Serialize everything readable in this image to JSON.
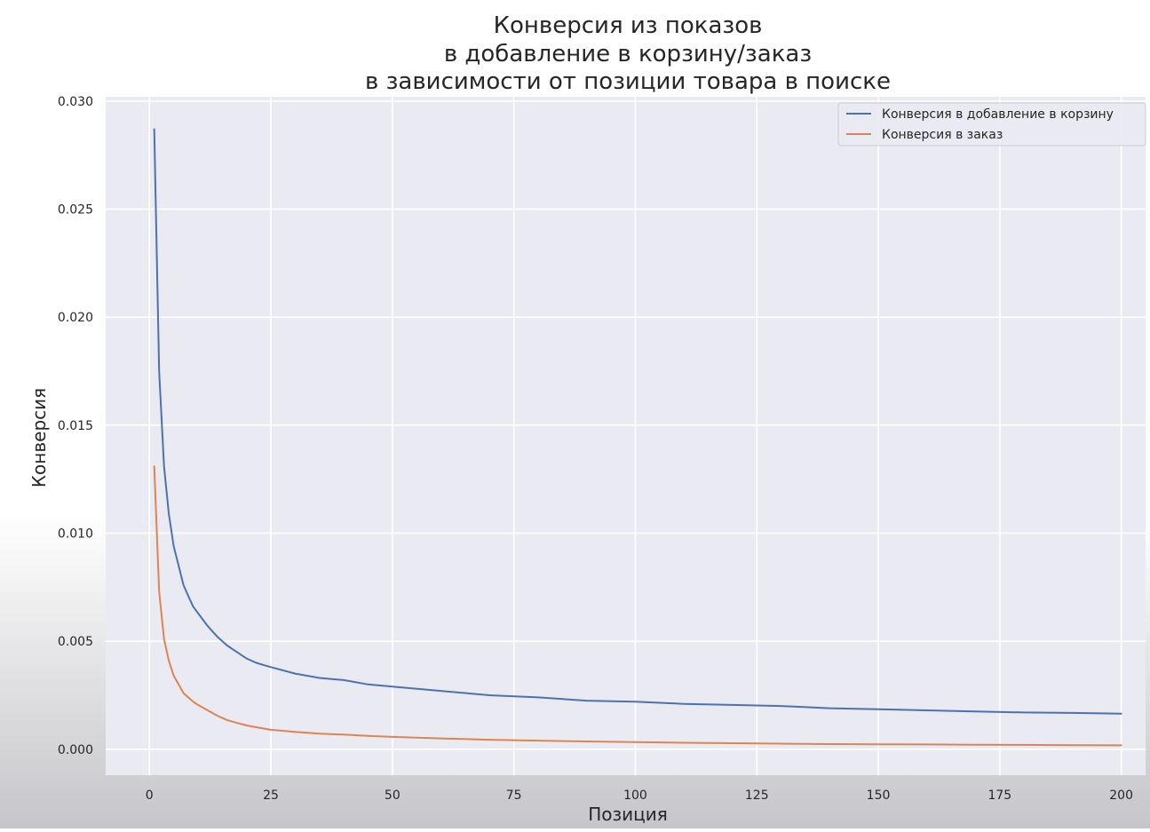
{
  "chart_data": {
    "type": "line",
    "title_lines": [
      "Конверсия из показов",
      "в добавление в корзину/заказ",
      "в зависимости от позиции товара в поиске"
    ],
    "xlabel": "Позиция",
    "ylabel": "Конверсия",
    "xlim": [
      -9,
      205
    ],
    "ylim": [
      -0.0012,
      0.0302
    ],
    "x_ticks": [
      0,
      25,
      50,
      75,
      100,
      125,
      150,
      175,
      200
    ],
    "y_ticks": [
      0.0,
      0.005,
      0.01,
      0.015,
      0.02,
      0.025,
      0.03
    ],
    "y_tick_labels": [
      "0.000",
      "0.005",
      "0.010",
      "0.015",
      "0.020",
      "0.025",
      "0.030"
    ],
    "grid": true,
    "legend_position": "top-right",
    "series": [
      {
        "name": "Конверсия в добавление в корзину",
        "color": "#4c72b0",
        "x": [
          1,
          2,
          3,
          4,
          5,
          6,
          7,
          8,
          9,
          10,
          12,
          14,
          16,
          18,
          20,
          22,
          25,
          30,
          35,
          40,
          45,
          50,
          60,
          70,
          80,
          90,
          100,
          110,
          120,
          130,
          140,
          150,
          160,
          170,
          180,
          190,
          200
        ],
        "y": [
          0.0287,
          0.0175,
          0.0131,
          0.0109,
          0.0094,
          0.0085,
          0.0076,
          0.0071,
          0.0066,
          0.0063,
          0.0057,
          0.0052,
          0.0048,
          0.0045,
          0.0042,
          0.004,
          0.0038,
          0.0035,
          0.0033,
          0.0032,
          0.003,
          0.0029,
          0.0027,
          0.0025,
          0.0024,
          0.00225,
          0.0022,
          0.0021,
          0.00205,
          0.002,
          0.0019,
          0.00185,
          0.0018,
          0.00175,
          0.0017,
          0.00168,
          0.00165
        ]
      },
      {
        "name": "Конверсия в заказ",
        "color": "#dd8452",
        "x": [
          1,
          2,
          3,
          4,
          5,
          6,
          7,
          8,
          9,
          10,
          12,
          14,
          16,
          18,
          20,
          22,
          25,
          30,
          35,
          40,
          45,
          50,
          60,
          70,
          80,
          90,
          100,
          110,
          120,
          130,
          140,
          150,
          160,
          170,
          180,
          190,
          200
        ],
        "y": [
          0.0131,
          0.0073,
          0.0051,
          0.0041,
          0.0034,
          0.003,
          0.0026,
          0.0024,
          0.0022,
          0.00205,
          0.0018,
          0.00155,
          0.00135,
          0.00122,
          0.0011,
          0.00102,
          0.0009,
          0.0008,
          0.00072,
          0.00068,
          0.00062,
          0.00057,
          0.0005,
          0.00044,
          0.0004,
          0.00036,
          0.00033,
          0.0003,
          0.00028,
          0.00026,
          0.00024,
          0.00023,
          0.00022,
          0.00021,
          0.0002,
          0.00019,
          0.00018
        ]
      }
    ]
  }
}
